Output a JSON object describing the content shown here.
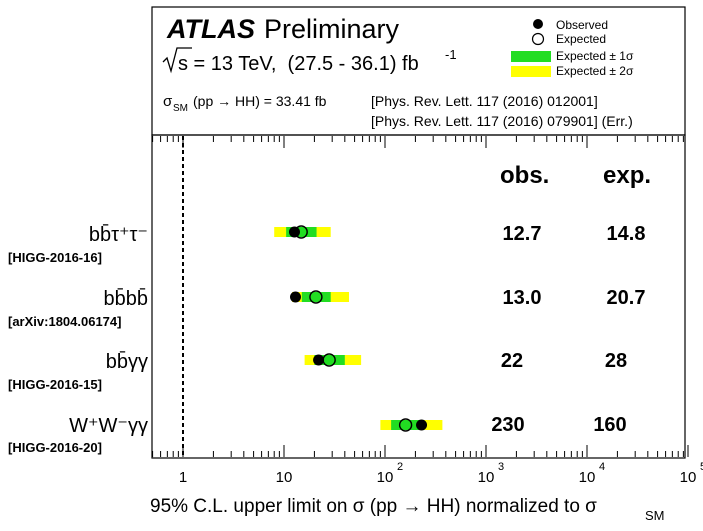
{
  "header": {
    "atlas": "ATLAS",
    "preliminary": "Preliminary",
    "energy_prefix": "s",
    "energy_text": " = 13 TeV,  (27.5 - 36.1) fb",
    "energy_sup": "-1",
    "xsec_text": " (pp → HH) = 33.41 fb",
    "xsec_sub": "SM",
    "ref1": "[Phys. Rev. Lett. 117 (2016) 012001]",
    "ref2": "[Phys. Rev. Lett. 117 (2016) 079901]  (Err.)"
  },
  "legend": {
    "observed": "Observed",
    "expected": "Expected",
    "band1": "Expected ± 1σ",
    "band2": "Expected ± 2σ"
  },
  "columns": {
    "obs": "obs.",
    "exp": "exp."
  },
  "xaxis": {
    "label_main": "95% C.L. upper limit on σ (pp → HH) normalized to σ",
    "label_sub": "SM",
    "tick_labels": [
      "1",
      "10",
      "10",
      "10",
      "10",
      "10"
    ],
    "tick_sups": [
      "",
      "",
      "2",
      "3",
      "4",
      "5"
    ]
  },
  "colors": {
    "band1": "#22dd22",
    "band2": "#ffff00",
    "text": "#000000"
  },
  "chart_data": {
    "type": "scatter",
    "log_x": true,
    "xlim": [
      0.5,
      100000
    ],
    "reference_line_x": 1,
    "channels": [
      {
        "name": "bb̄ττ",
        "ref": "[HIGG-2016-16]",
        "observed": 12.7,
        "expected": 14.8,
        "band1": [
          10.5,
          21
        ],
        "band2": [
          8,
          29
        ],
        "obs_label": "12.7",
        "exp_label": "14.8"
      },
      {
        "name": "bb̄bb̄",
        "ref": "[arXiv:1804.06174]",
        "observed": 13.0,
        "expected": 20.7,
        "band1": [
          15,
          29
        ],
        "band2": [
          12,
          44
        ],
        "obs_label": "13.0",
        "exp_label": "20.7"
      },
      {
        "name": "bb̄γγ",
        "ref": "[HIGG-2016-15]",
        "observed": 22,
        "expected": 28,
        "band1": [
          20,
          40
        ],
        "band2": [
          16,
          58
        ],
        "obs_label": "22",
        "exp_label": "28"
      },
      {
        "name": "W⁺W⁻γγ",
        "ref": "[HIGG-2016-20]",
        "observed": 230,
        "expected": 160,
        "band1": [
          115,
          240
        ],
        "band2": [
          90,
          370
        ],
        "obs_label": "230",
        "exp_label": "160"
      }
    ]
  }
}
